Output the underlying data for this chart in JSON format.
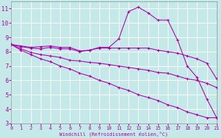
{
  "xlabel": "Windchill (Refroidissement éolien,°C)",
  "background_color": "#c5e8e8",
  "grid_color": "#b0d8d8",
  "line_color": "#aa00aa",
  "x_values": [
    0,
    1,
    2,
    3,
    4,
    5,
    6,
    7,
    8,
    9,
    10,
    11,
    12,
    13,
    14,
    15,
    16,
    17,
    18,
    19,
    20,
    21
  ],
  "series": {
    "line1": [
      8.5,
      8.4,
      8.3,
      8.35,
      8.4,
      8.3,
      8.3,
      8.05,
      8.1,
      8.3,
      8.3,
      8.9,
      10.8,
      11.1,
      10.7,
      10.2,
      10.2,
      8.8,
      7.0,
      6.2,
      4.7,
      3.4
    ],
    "line2": [
      8.5,
      8.35,
      8.25,
      8.2,
      8.3,
      8.2,
      8.2,
      8.0,
      8.1,
      8.25,
      8.25,
      8.25,
      8.25,
      8.25,
      8.25,
      8.1,
      8.0,
      7.9,
      7.7,
      7.5,
      7.2,
      6.1
    ],
    "line3": [
      8.5,
      8.2,
      7.95,
      7.8,
      7.7,
      7.6,
      7.4,
      7.35,
      7.25,
      7.2,
      7.1,
      7.0,
      6.9,
      6.8,
      6.7,
      6.55,
      6.5,
      6.3,
      6.1,
      6.0,
      5.8,
      5.5
    ],
    "line4": [
      8.5,
      8.1,
      7.8,
      7.5,
      7.3,
      7.0,
      6.8,
      6.5,
      6.3,
      6.0,
      5.8,
      5.5,
      5.3,
      5.0,
      4.8,
      4.6,
      4.3,
      4.1,
      3.8,
      3.6,
      3.4,
      3.4
    ]
  },
  "xlim": [
    0,
    21
  ],
  "ylim": [
    3,
    11.5
  ],
  "yticks": [
    3,
    4,
    5,
    6,
    7,
    8,
    9,
    10,
    11
  ],
  "xticks": [
    0,
    1,
    2,
    3,
    4,
    5,
    6,
    7,
    8,
    9,
    10,
    11,
    12,
    13,
    14,
    15,
    16,
    17,
    18,
    19,
    20,
    21
  ],
  "figsize": [
    3.2,
    2.0
  ],
  "dpi": 100
}
